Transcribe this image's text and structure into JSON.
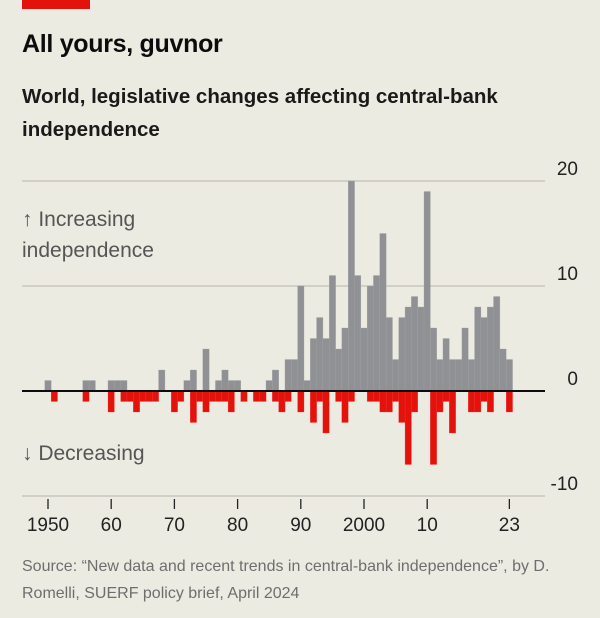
{
  "title": "All yours, guvnor",
  "subtitle": "World, legislative changes affecting central-bank independence",
  "source": "Source: “New data and recent trends in central-bank independence”, by D. Romelli, SUERF policy brief, April 2024",
  "colors": {
    "background": "#ecebe1",
    "increasing": "#8f9195",
    "decreasing": "#e3120b",
    "accent": "#e3120b"
  },
  "chart_data": {
    "type": "bar",
    "title": "All yours, guvnor",
    "subtitle": "World, legislative changes affecting central-bank independence",
    "ylim": [
      -10,
      20
    ],
    "yticks": [
      20,
      10,
      0,
      -10
    ],
    "xticks": [
      {
        "year": 1950,
        "label": "1950"
      },
      {
        "year": 1960,
        "label": "60"
      },
      {
        "year": 1970,
        "label": "70"
      },
      {
        "year": 1980,
        "label": "80"
      },
      {
        "year": 1990,
        "label": "90"
      },
      {
        "year": 2000,
        "label": "2000"
      },
      {
        "year": 2010,
        "label": "10"
      },
      {
        "year": 2023,
        "label": "23"
      }
    ],
    "grid": true,
    "annotations": {
      "increasing": "↑ Increasing independence",
      "increasing_line1": "↑ Increasing",
      "increasing_line2": "independence",
      "decreasing": "↓ Decreasing"
    },
    "start_year": 1950,
    "series": [
      {
        "name": "Increasing independence",
        "values": [
          1,
          0,
          0,
          0,
          0,
          0,
          1,
          1,
          0,
          0,
          1,
          1,
          1,
          0,
          0,
          0,
          0,
          0,
          2,
          0,
          0,
          0,
          1,
          2,
          0,
          4,
          0,
          1,
          2,
          1,
          1,
          0,
          0,
          0,
          0,
          1,
          2,
          0,
          3,
          3,
          10,
          1,
          5,
          7,
          5,
          11,
          4,
          6,
          20,
          11,
          6,
          10,
          11,
          15,
          7,
          3,
          7,
          8,
          9,
          8,
          19,
          6,
          3,
          5,
          3,
          3,
          6,
          3,
          8,
          7,
          8,
          9,
          4,
          3
        ]
      },
      {
        "name": "Decreasing",
        "values": [
          0,
          -1,
          0,
          0,
          0,
          0,
          -1,
          0,
          0,
          0,
          -2,
          0,
          -1,
          -1,
          -2,
          -1,
          -1,
          -1,
          0,
          0,
          -2,
          -1,
          0,
          -3,
          -1,
          -2,
          -1,
          -1,
          -1,
          -2,
          0,
          -1,
          0,
          -1,
          -1,
          0,
          -1,
          -2,
          -1,
          0,
          -2,
          0,
          -3,
          -1,
          -4,
          0,
          -1,
          -3,
          -1,
          0,
          0,
          -1,
          -1,
          -2,
          -2,
          -1,
          -3,
          -7,
          -2,
          0,
          0,
          -7,
          -2,
          -1,
          -4,
          0,
          0,
          -2,
          -2,
          -1,
          -2,
          0,
          0,
          -2
        ]
      }
    ]
  }
}
